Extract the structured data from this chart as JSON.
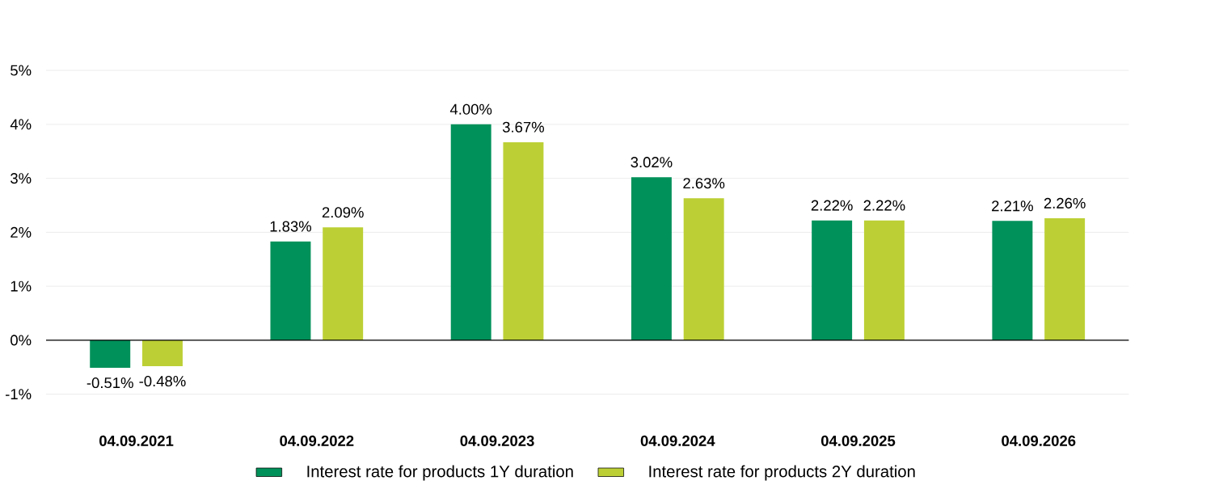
{
  "chart_data": {
    "type": "bar",
    "categories": [
      "04.09.2021",
      "04.09.2022",
      "04.09.2023",
      "04.09.2024",
      "04.09.2025",
      "04.09.2026"
    ],
    "series": [
      {
        "name": "Interest rate for products 1Y duration",
        "color": "#00915a",
        "values": [
          -0.51,
          1.83,
          4.0,
          3.02,
          2.22,
          2.21
        ],
        "value_labels": [
          "-0.51%",
          "1.83%",
          "4.00%",
          "3.02%",
          "2.22%",
          "2.21%"
        ]
      },
      {
        "name": "Interest rate for products 2Y duration",
        "color": "#bcd035",
        "values": [
          -0.48,
          2.09,
          3.67,
          2.63,
          2.22,
          2.26
        ],
        "value_labels": [
          "-0.48%",
          "2.09%",
          "3.67%",
          "2.63%",
          "2.22%",
          "2.26%"
        ]
      }
    ],
    "ylim": [
      -1,
      5
    ],
    "yticks": [
      {
        "value": -1,
        "label": "-1%"
      },
      {
        "value": 0,
        "label": "0%"
      },
      {
        "value": 1,
        "label": "1%"
      },
      {
        "value": 2,
        "label": "2%"
      },
      {
        "value": 3,
        "label": "3%"
      },
      {
        "value": 4,
        "label": "4%"
      },
      {
        "value": 5,
        "label": "5%"
      }
    ],
    "grid": "y",
    "legend": "bottom"
  }
}
